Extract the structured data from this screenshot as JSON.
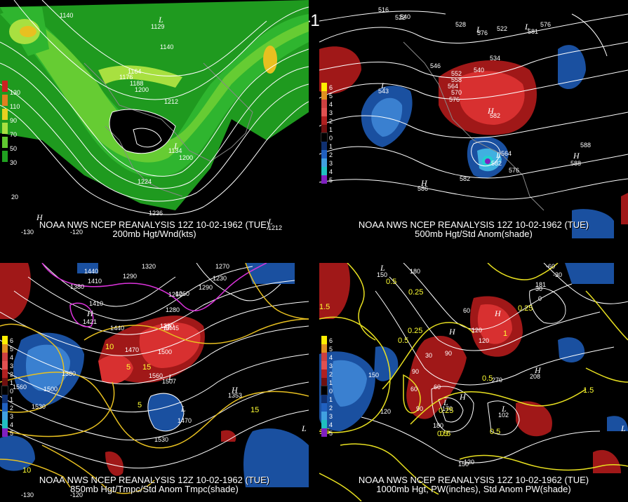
{
  "title": "12Z 10-02-1962 (TUE)",
  "panels": [
    {
      "caption_line1": "NOAA NWS NCEP REANALYSIS 12Z 10-02-1962 (TUE)",
      "caption_line2": "200mb Hgt/Wnd(kts)",
      "legend": [
        {
          "label": "130",
          "color": "#cc2222"
        },
        {
          "label": "110",
          "color": "#e08020"
        },
        {
          "label": "90",
          "color": "#e8d020"
        },
        {
          "label": "70",
          "color": "#a8e040"
        },
        {
          "label": "50",
          "color": "#60c830"
        },
        {
          "label": "30",
          "color": "#20a020"
        }
      ],
      "contour_labels": [
        "1140",
        "1140",
        "1164",
        "1176",
        "1188",
        "1200",
        "1212",
        "1200",
        "1224",
        "1236",
        "1134",
        "1129",
        "1212"
      ],
      "lon_labels": [
        "-130",
        "-120"
      ],
      "lat_labels": [
        "20"
      ],
      "centers": [
        "L",
        "L",
        "H",
        "L"
      ]
    },
    {
      "caption_line1": "NOAA NWS NCEP REANALYSIS 12Z 10-02-1962 (TUE)",
      "caption_line2": "500mb Hgt/Std Anom(shade)",
      "legend": [
        {
          "label": "6",
          "color": "#ffee00"
        },
        {
          "label": "5",
          "color": "#e09020"
        },
        {
          "label": "4",
          "color": "#cc4040"
        },
        {
          "label": "3",
          "color": "#e05050"
        },
        {
          "label": "2",
          "color": "#b02020"
        },
        {
          "label": "1",
          "color": "#701010"
        },
        {
          "label": "0",
          "color": "#000000"
        },
        {
          "label": "1",
          "color": "#103070"
        },
        {
          "label": "2",
          "color": "#2060c0"
        },
        {
          "label": "3",
          "color": "#40a0e0"
        },
        {
          "label": "4",
          "color": "#20c0c0"
        },
        {
          "label": "5",
          "color": "#8020c0"
        }
      ],
      "contour_labels": [
        "516",
        "522",
        "528",
        "540",
        "546",
        "552",
        "558",
        "564",
        "570",
        "576",
        "582",
        "588",
        "534",
        "522",
        "564",
        "576",
        "540",
        "543",
        "582",
        "586",
        "588",
        "582",
        "576",
        "581",
        "576"
      ],
      "centers": [
        "L",
        "L",
        "L",
        "H",
        "L",
        "H",
        "H"
      ]
    },
    {
      "caption_line1": "NOAA NWS NCEP REANALYSIS 12Z 10-02-1962 (TUE)",
      "caption_line2": "850mb Hgt/Tmpc/Std Anom Tmpc(shade)",
      "legend": [
        {
          "label": "6",
          "color": "#ffee00"
        },
        {
          "label": "5",
          "color": "#e09020"
        },
        {
          "label": "4",
          "color": "#cc4040"
        },
        {
          "label": "3",
          "color": "#e05050"
        },
        {
          "label": "2",
          "color": "#b02020"
        },
        {
          "label": "1",
          "color": "#701010"
        },
        {
          "label": "0",
          "color": "#000000"
        },
        {
          "label": "1",
          "color": "#103070"
        },
        {
          "label": "2",
          "color": "#2060c0"
        },
        {
          "label": "3",
          "color": "#40a0e0"
        },
        {
          "label": "4",
          "color": "#20c0c0"
        },
        {
          "label": "5",
          "color": "#8020c0"
        }
      ],
      "contour_labels": [
        "1320",
        "1290",
        "1440",
        "1410",
        "1380",
        "1260",
        "1230",
        "1410",
        "1440",
        "1470",
        "1500",
        "1560",
        "1530",
        "1560",
        "1380",
        "1500",
        "1470",
        "1530",
        "1260",
        "1290",
        "1280",
        "1270",
        "1290",
        "1353",
        "1507",
        "1445",
        "1421"
      ],
      "temp_labels": [
        "15",
        "15",
        "10",
        "5",
        "10",
        "5"
      ],
      "lon_labels": [
        "-130",
        "-120"
      ],
      "centers": [
        "H",
        "L",
        "L",
        "H",
        "H",
        "L"
      ]
    },
    {
      "caption_line1": "NOAA NWS NCEP REANALYSIS 12Z 10-02-1962 (TUE)",
      "caption_line2": "1000mb Hgt, PW(inches), Std Anom PW(shade)",
      "legend": [
        {
          "label": "6",
          "color": "#ffee00"
        },
        {
          "label": "5",
          "color": "#e09020"
        },
        {
          "label": "4",
          "color": "#cc4040"
        },
        {
          "label": "3",
          "color": "#e05050"
        },
        {
          "label": "2",
          "color": "#b02020"
        },
        {
          "label": "1",
          "color": "#701010"
        },
        {
          "label": "0",
          "color": "#000000"
        },
        {
          "label": "1",
          "color": "#103070"
        },
        {
          "label": "2",
          "color": "#2060c0"
        },
        {
          "label": "3",
          "color": "#40a0e0"
        },
        {
          "label": "4",
          "color": "#20c0c0"
        },
        {
          "label": "5",
          "color": "#8020c0"
        }
      ],
      "contour_labels": [
        "180",
        "150",
        "120",
        "90",
        "60",
        "30",
        "0",
        "-30",
        "-60",
        "120",
        "90",
        "150",
        "120",
        "60",
        "30",
        "180",
        "150",
        "120",
        "90",
        "60",
        "170",
        "102",
        "208",
        "270",
        "181"
      ],
      "pw_labels": [
        "0.25",
        "0.5",
        "1.5",
        "0.5",
        "1",
        "1.5",
        "1.5",
        "0.25",
        "0.5",
        "0.25",
        "0.5",
        "0.25",
        "0.5",
        "0.5"
      ],
      "centers": [
        "L",
        "H",
        "H",
        "L",
        "L",
        "H",
        "H",
        "L"
      ]
    }
  ]
}
